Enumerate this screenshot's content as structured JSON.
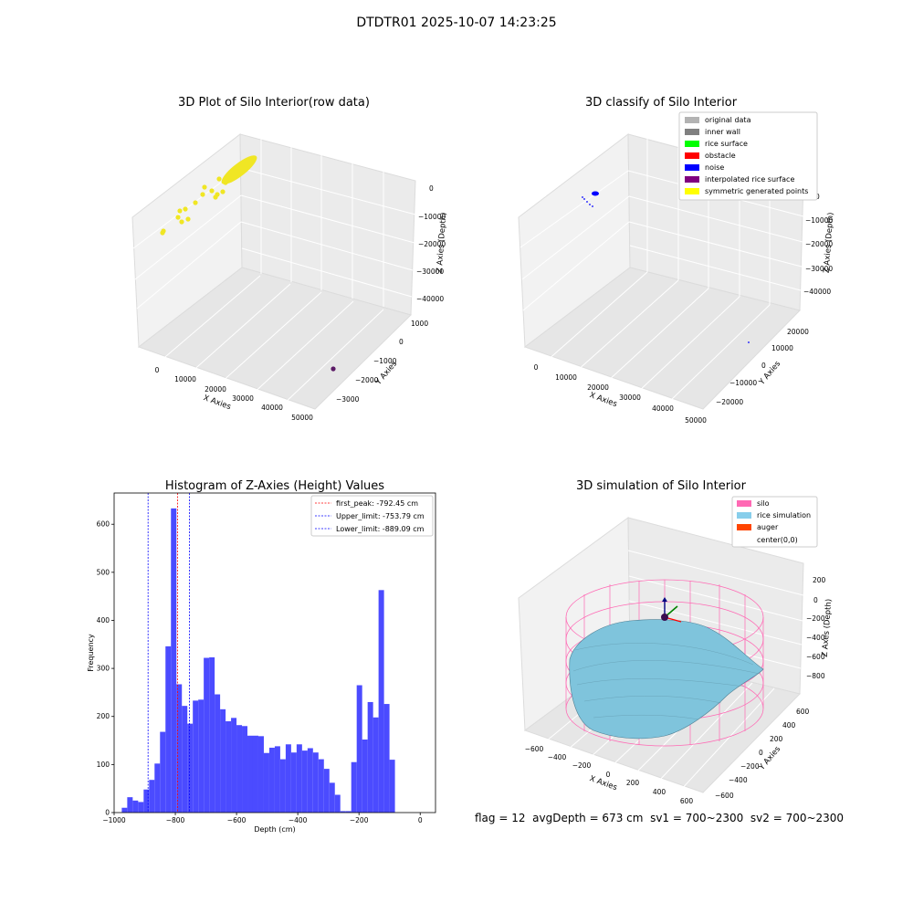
{
  "suptitle": "DTDTR01 2025-10-07 14:23:25",
  "footer": {
    "flag": "flag = 12",
    "avg": "avgDepth = 673 cm",
    "sv1": "sv1 = 700~2300",
    "sv2": "sv2 = 700~2300"
  },
  "colors": {
    "original": "#b3b3b3",
    "inner_wall": "#808080",
    "rice_surface": "#00ff00",
    "obstacle": "#ff0000",
    "noise": "#0000ff",
    "interpolated": "#800080",
    "symmetric": "#ffff00",
    "hist": "#4b4bff",
    "silo": "#ff69b4",
    "rice_sim": "#87ceeb",
    "auger": "#ff4500",
    "scatter_yellow": "#f0e624",
    "scatter_purple": "#5b1a66"
  },
  "chart_data": [
    {
      "type": "scatter",
      "title": "3D Plot of Silo Interior(row data)",
      "xlabel": "X Axies",
      "ylabel": "Y Axies",
      "zlabel": "Z Axies (Depth)",
      "x_ticks": [
        "0",
        "10000",
        "20000",
        "30000",
        "40000",
        "50000"
      ],
      "y_ticks": [
        "1000",
        "0",
        "−1000",
        "−2000",
        "−3000"
      ],
      "z_ticks": [
        "0",
        "−10000",
        "−20000",
        "−30000",
        "−40000"
      ],
      "xlim": [
        -3000,
        52000
      ],
      "ylim": [
        -3600,
        1400
      ],
      "zlim": [
        -45000,
        1000
      ],
      "series": [
        {
          "color": "yellow",
          "points": [
            [
              0,
              -100,
              0
            ]
          ],
          "note": "dense cluster near origin"
        },
        {
          "color": "purple",
          "points": [
            [
              47000,
              -2300,
              -42000
            ]
          ]
        }
      ]
    },
    {
      "type": "scatter",
      "title": "3D classify of Silo Interior",
      "xlabel": "X Axies",
      "ylabel": "Y Axies",
      "zlabel": "Z Axies (Depth)",
      "x_ticks": [
        "0",
        "10000",
        "20000",
        "30000",
        "40000",
        "50000"
      ],
      "y_ticks": [
        "20000",
        "10000",
        "0",
        "−10000",
        "−20000"
      ],
      "z_ticks": [
        "0",
        "−10000",
        "−20000",
        "−30000",
        "−40000"
      ],
      "legend": [
        "original data",
        "inner wall",
        "rice surface",
        "obstacle",
        "noise",
        "interpolated rice surface",
        "symmetric generated points"
      ],
      "legend_position": "top-right"
    },
    {
      "type": "bar",
      "title": "Histogram of Z-Axies (Height) Values",
      "xlabel": "Depth (cm)",
      "ylabel": "Frequency",
      "xlim": [
        -1000,
        50
      ],
      "ylim": [
        0,
        665
      ],
      "x_ticks": [
        -1000,
        -800,
        -600,
        -400,
        -200,
        0
      ],
      "y_ticks": [
        0,
        100,
        200,
        300,
        400,
        500,
        600
      ],
      "bin_width": 17.85,
      "bin_start": -975.0,
      "values": [
        10,
        32,
        25,
        22,
        48,
        68,
        102,
        168,
        346,
        633,
        267,
        222,
        185,
        233,
        235,
        322,
        323,
        246,
        215,
        190,
        197,
        182,
        180,
        160,
        160,
        159,
        124,
        135,
        138,
        111,
        142,
        125,
        142,
        129,
        134,
        125,
        111,
        91,
        62,
        37,
        3,
        3,
        105,
        265,
        152,
        230,
        198,
        463,
        226,
        110
      ],
      "lines": [
        {
          "label": "first_peak: -792.45 cm",
          "x": -792.45,
          "color": "#ff0000"
        },
        {
          "label": "Upper_limit: -753.79 cm",
          "x": -753.79,
          "color": "#0000ff"
        },
        {
          "label": "Lower_limit: -889.09 cm",
          "x": -889.09,
          "color": "#0000ff"
        }
      ],
      "legend_position": "top-right"
    },
    {
      "type": "surface",
      "title": "3D simulation of Silo Interior",
      "xlabel": "X Axies",
      "ylabel": "Y Axies",
      "zlabel": "Z Axes (Depth)",
      "x_ticks": [
        "−600",
        "−400",
        "−200",
        "0",
        "200",
        "400",
        "600"
      ],
      "y_ticks": [
        "600",
        "400",
        "200",
        "0",
        "−200",
        "−400",
        "−600"
      ],
      "z_ticks": [
        "200",
        "0",
        "−200",
        "−400",
        "−600",
        "−800"
      ],
      "legend": [
        "silo",
        "rice simulation",
        "auger",
        "center(0,0)"
      ],
      "legend_position": "top-right"
    }
  ]
}
